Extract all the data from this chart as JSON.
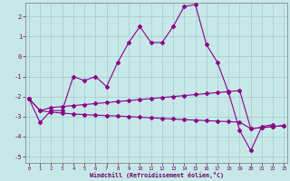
{
  "background_color": "#c8e8e8",
  "grid_color": "#a0cccc",
  "line_color": "#880088",
  "x": [
    0,
    1,
    2,
    3,
    4,
    5,
    6,
    7,
    8,
    9,
    10,
    11,
    12,
    13,
    14,
    15,
    16,
    17,
    18,
    19,
    20,
    21,
    22,
    23
  ],
  "y_main": [
    -2.1,
    -3.3,
    -2.7,
    -2.7,
    -1.0,
    -1.2,
    -1.0,
    -1.5,
    -0.3,
    0.7,
    1.5,
    0.7,
    0.7,
    1.5,
    2.5,
    2.6,
    0.6,
    -0.3,
    -1.8,
    -3.7,
    -4.7,
    -3.5,
    -3.4,
    null
  ],
  "y_upper": [
    -2.1,
    -2.7,
    -2.55,
    -2.5,
    -2.45,
    -2.4,
    -2.35,
    -2.3,
    -2.25,
    -2.2,
    -2.15,
    -2.1,
    -2.05,
    -2.0,
    -1.95,
    -1.9,
    -1.85,
    -1.8,
    -1.75,
    -1.7,
    -3.6,
    -3.55,
    -3.5,
    -3.45
  ],
  "y_lower": [
    -2.1,
    -2.7,
    -2.78,
    -2.82,
    -2.87,
    -2.9,
    -2.93,
    -2.95,
    -2.97,
    -3.0,
    -3.03,
    -3.06,
    -3.09,
    -3.12,
    -3.15,
    -3.18,
    -3.2,
    -3.23,
    -3.25,
    -3.28,
    -3.6,
    -3.55,
    -3.5,
    -3.45
  ],
  "ylim": [
    -5.3,
    2.7
  ],
  "xlim": [
    -0.3,
    23.3
  ],
  "yticks": [
    -5,
    -4,
    -3,
    -2,
    -1,
    0,
    1,
    2
  ],
  "xticks": [
    0,
    1,
    2,
    3,
    4,
    5,
    6,
    7,
    8,
    9,
    10,
    11,
    12,
    13,
    14,
    15,
    16,
    17,
    18,
    19,
    20,
    21,
    22,
    23
  ],
  "xlabel": "Windchill (Refroidissement éolien,°C)"
}
